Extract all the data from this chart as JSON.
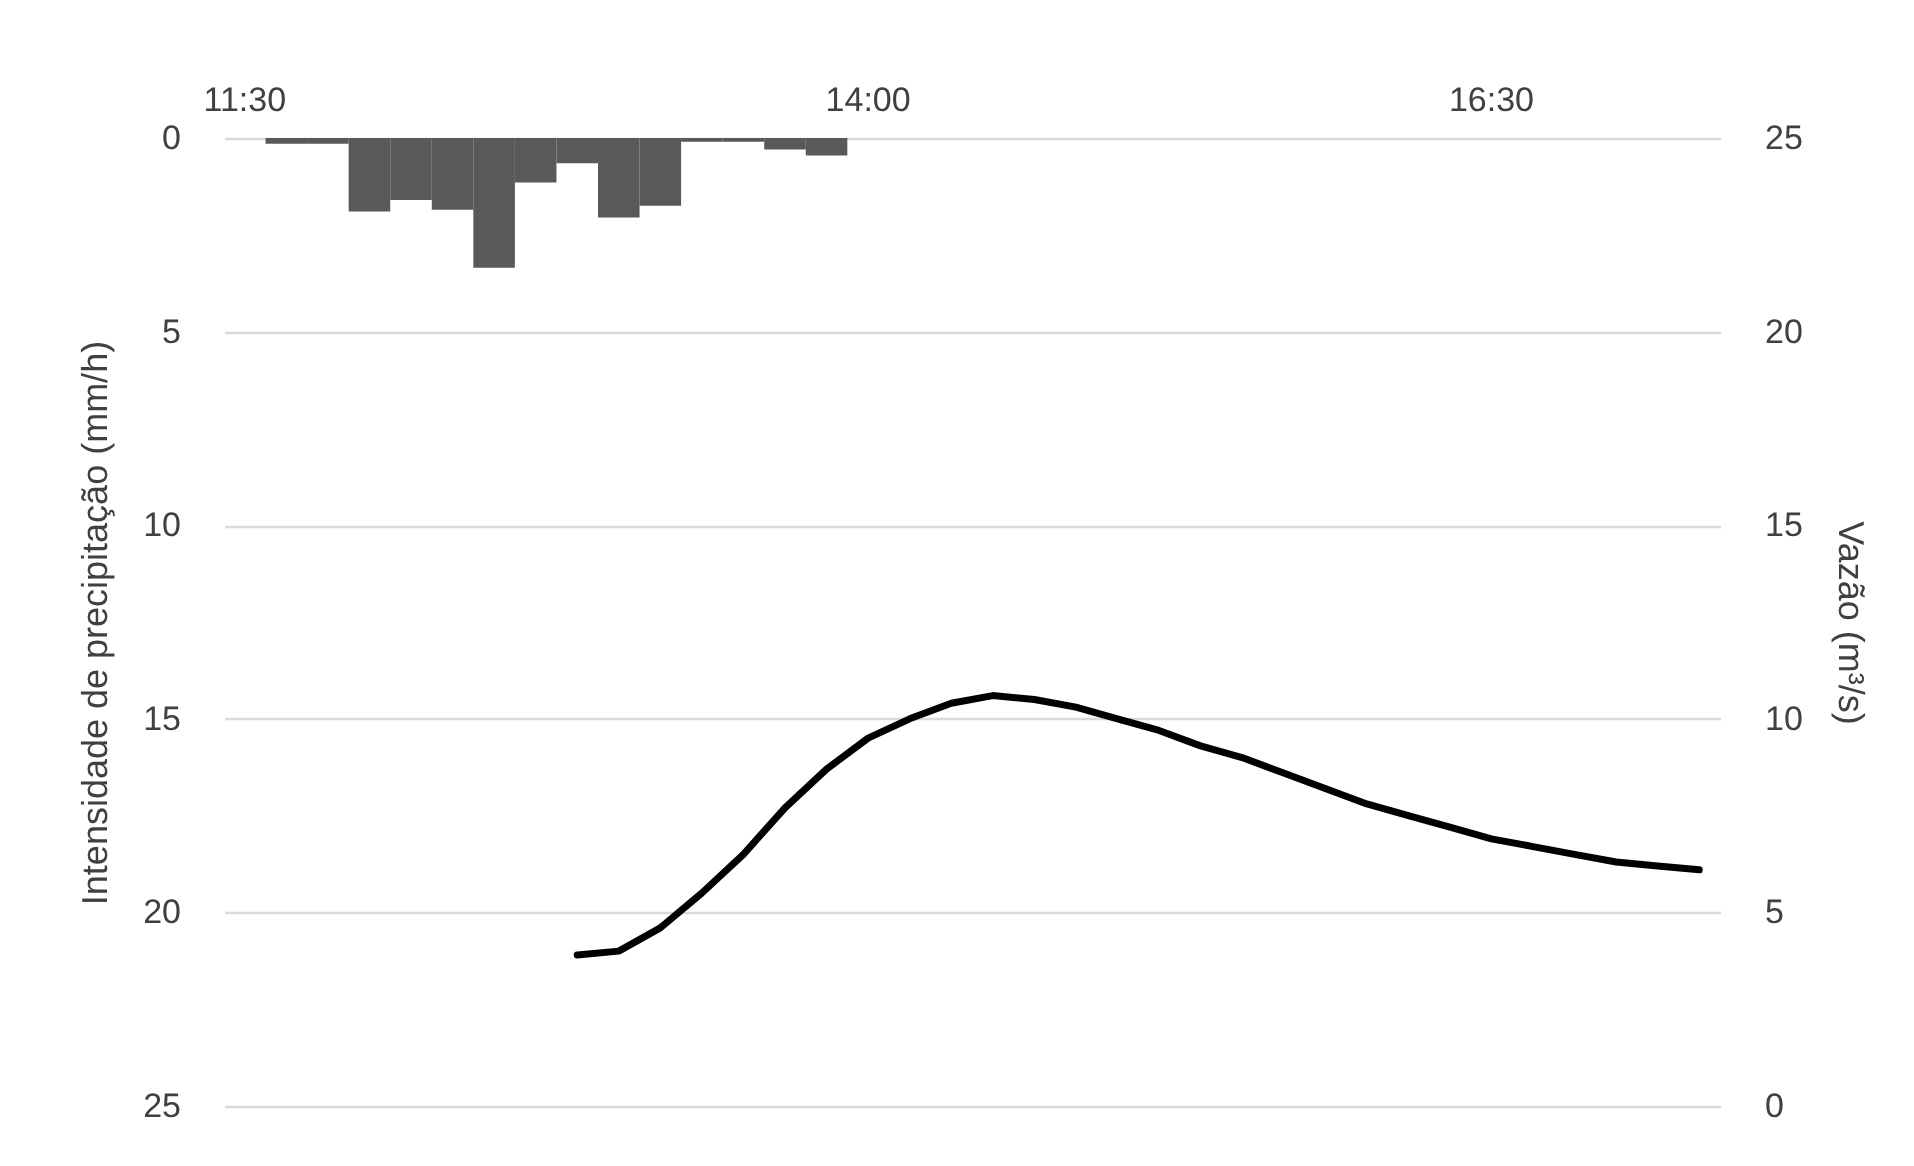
{
  "chart_data": {
    "type": "bar",
    "ylabel": "Intensidade de precipitação (mm/h)",
    "y2label": "Vazão (m³/s)",
    "categories": [
      "11:30",
      null,
      null,
      null,
      null,
      null,
      null,
      null,
      null,
      null,
      null,
      null,
      null,
      null,
      null,
      "14:00",
      null,
      null,
      null,
      null,
      null,
      null,
      null,
      null,
      null,
      null,
      null,
      null,
      null,
      null,
      "16:30",
      null,
      null,
      null,
      null,
      null
    ],
    "series": [
      {
        "color": "#595959",
        "values": [
          null,
          0.15,
          0.15,
          1.9,
          1.6,
          1.85,
          3.35,
          1.15,
          0.65,
          2.05,
          1.75,
          0.1,
          0.1,
          0.3,
          0.45,
          null,
          null,
          null,
          null,
          null,
          null,
          null,
          null,
          null,
          null,
          null,
          null,
          null,
          null,
          null,
          null,
          null,
          null,
          null,
          null,
          null
        ]
      },
      {
        "type": "line",
        "axis": "y2",
        "color": "#000000",
        "values": [
          null,
          null,
          null,
          null,
          null,
          null,
          null,
          null,
          3.9,
          4.0,
          4.6,
          5.5,
          6.5,
          7.7,
          8.7,
          9.5,
          10.0,
          10.4,
          10.6,
          10.5,
          10.3,
          10.0,
          9.7,
          9.3,
          9.0,
          8.6,
          8.2,
          7.8,
          7.5,
          7.2,
          6.9,
          6.7,
          6.5,
          6.3,
          6.2,
          6.1
        ]
      }
    ],
    "ylim": [
      25,
      0
    ],
    "yticks": [
      0,
      5,
      10,
      15,
      20,
      25
    ],
    "y2lim": [
      0,
      25
    ],
    "y2ticks": [
      0,
      5,
      10,
      15,
      20,
      25
    ],
    "grid": "y",
    "marker": "none",
    "line_style": "solid"
  }
}
